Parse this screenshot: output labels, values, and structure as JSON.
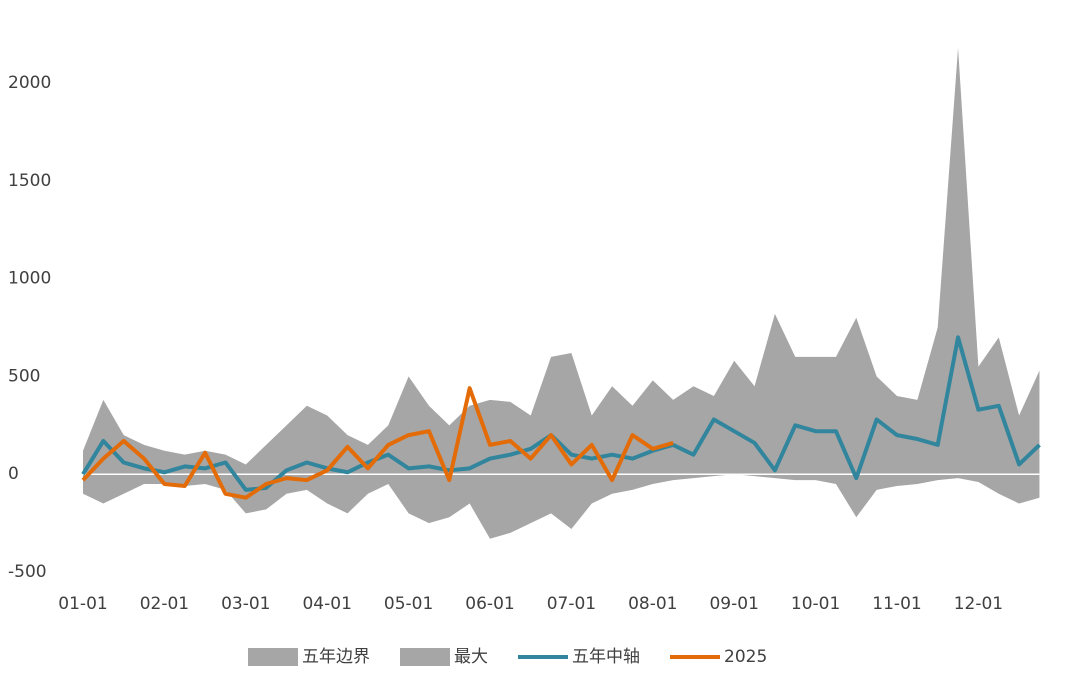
{
  "chart_data": {
    "type": "line",
    "categories": [
      "01-01",
      null,
      null,
      null,
      "02-01",
      null,
      null,
      null,
      "03-01",
      null,
      null,
      null,
      "04-01",
      null,
      null,
      null,
      "05-01",
      null,
      null,
      null,
      "06-01",
      null,
      null,
      null,
      "07-01",
      null,
      null,
      null,
      "08-01",
      null,
      null,
      null,
      "09-01",
      null,
      null,
      null,
      "10-01",
      null,
      null,
      null,
      "11-01",
      null,
      null,
      null,
      "12-01",
      null,
      null,
      null
    ],
    "series": [
      {
        "name": "五年边界",
        "kind": "area",
        "color": "#a6a6a6",
        "values": [
          -100,
          -150,
          -100,
          -50,
          -50,
          -60,
          -50,
          -80,
          -200,
          -180,
          -100,
          -80,
          -150,
          -200,
          -100,
          -50,
          -200,
          -250,
          -220,
          -150,
          -330,
          -300,
          -250,
          -200,
          -280,
          -150,
          -100,
          -80,
          -50,
          -30,
          -20,
          -10,
          0,
          -10,
          -20,
          -30,
          -30,
          -50,
          -220,
          -80,
          -60,
          -50,
          -30,
          -20,
          -40,
          -100,
          -150,
          -120
        ]
      },
      {
        "name": "最大",
        "kind": "area",
        "color": "#a6a6a6",
        "values": [
          120,
          380,
          200,
          150,
          120,
          100,
          120,
          100,
          50,
          150,
          250,
          350,
          300,
          200,
          150,
          250,
          500,
          350,
          250,
          350,
          380,
          370,
          300,
          600,
          620,
          300,
          450,
          350,
          480,
          380,
          450,
          400,
          580,
          450,
          820,
          600,
          600,
          600,
          800,
          500,
          400,
          380,
          750,
          2180,
          550,
          700,
          300,
          530
        ]
      },
      {
        "name": "五年中轴",
        "kind": "line",
        "color": "#31859c",
        "values": [
          0,
          170,
          60,
          30,
          10,
          40,
          30,
          60,
          -80,
          -70,
          20,
          60,
          30,
          10,
          60,
          100,
          30,
          40,
          20,
          30,
          80,
          100,
          130,
          200,
          100,
          80,
          100,
          80,
          120,
          150,
          100,
          280,
          220,
          160,
          20,
          250,
          220,
          220,
          -20,
          280,
          200,
          180,
          150,
          700,
          330,
          350,
          50,
          150
        ]
      },
      {
        "name": "2025",
        "kind": "line",
        "color": "#e36c09",
        "values": [
          -30,
          80,
          170,
          80,
          -50,
          -60,
          110,
          -100,
          -120,
          -50,
          -20,
          -30,
          20,
          140,
          30,
          150,
          200,
          220,
          -30,
          440,
          150,
          170,
          80,
          200,
          50,
          150,
          -30,
          200,
          130,
          160,
          null,
          null,
          null,
          null,
          null,
          null,
          null,
          null,
          null,
          null,
          null,
          null,
          null,
          null,
          null,
          null,
          null,
          null
        ]
      }
    ],
    "ylim": [
      -500,
      2200
    ],
    "yticks": [
      -500,
      0,
      500,
      1000,
      1500,
      2000
    ]
  }
}
